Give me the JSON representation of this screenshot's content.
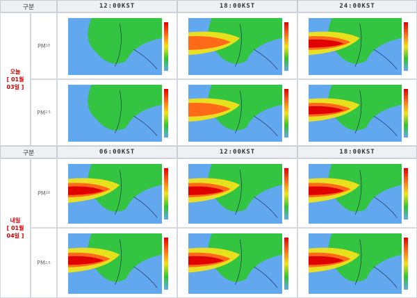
{
  "section1": {
    "gubun": "구분",
    "times": [
      "12:00KST",
      "18:00KST",
      "24:00KST"
    ],
    "day": {
      "line1": "오늘",
      "line2": "[ 01월",
      "line3": "03일 ]"
    }
  },
  "section2": {
    "gubun": "구분",
    "times": [
      "06:00KST",
      "12:00KST",
      "18:00KST"
    ],
    "day": {
      "line1": "내일",
      "line2": "[ 01월",
      "line3": "04일 ]"
    }
  },
  "labels": {
    "pm10_main": "PM",
    "pm10_sub": "10",
    "pm25_main": "PM",
    "pm25_sub": "2.5"
  },
  "map_titles": {
    "pm10": "PM₁₀",
    "pm25": "PM₂.₅"
  },
  "colors": {
    "sea": "#62a8ef",
    "land_low": "#2fc62f",
    "mid": "#f0e21b",
    "high": "#ff6a18",
    "very_high": "#e00000",
    "accent_red": "#d10000"
  }
}
